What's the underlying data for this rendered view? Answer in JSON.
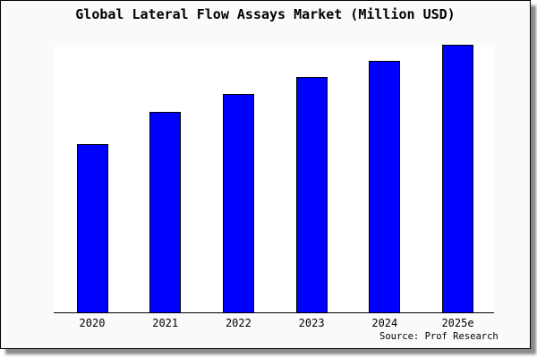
{
  "chart_data": {
    "type": "bar",
    "title": "Global Lateral Flow Assays Market (Million USD)",
    "categories": [
      "2020",
      "2021",
      "2022",
      "2023",
      "2024",
      "2025e"
    ],
    "values": [
      62.8,
      75.0,
      81.5,
      88.0,
      94.0,
      100
    ],
    "values_note": "No numeric y-axis is shown in the image; values are bar heights measured as percent of the tallest (2025e) bar",
    "ylim": [
      0,
      100
    ],
    "xlabel": "",
    "ylabel": "",
    "grid": false,
    "legend": "none",
    "source_credit": "Source: Prof Research"
  },
  "colors": {
    "bar_fill": "#0000ff",
    "bar_edge": "#000000",
    "frame_background": "#fafafa",
    "plot_background": "#ffffff",
    "axis": "#000000",
    "text": "#000000",
    "shadow": "#8a8a8a"
  }
}
